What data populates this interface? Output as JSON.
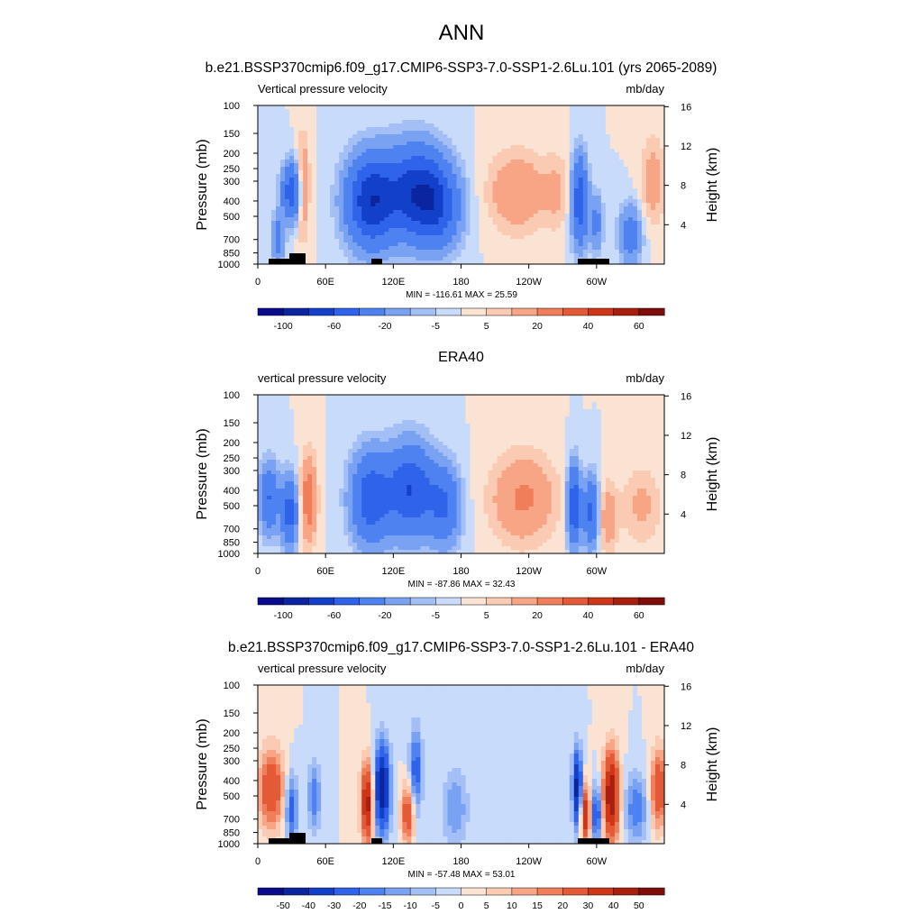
{
  "title": "ANN",
  "chart_data": [
    {
      "type": "heatmap",
      "title": "b.e21.BSSP370cmip6.f09_g17.CMIP6-SSP3-7.0-SSP1-2.6Lu.101 (yrs 2065-2089)",
      "left_label": "Vertical pressure velocity",
      "units": "mb/day",
      "ylabel": "Pressure (mb)",
      "ylabel_right": "Height (km)",
      "x_ticks": [
        "0",
        "60E",
        "120E",
        "180",
        "120W",
        "60W"
      ],
      "x_tick_values": [
        0,
        60,
        120,
        180,
        240,
        300
      ],
      "xlim": [
        0,
        360
      ],
      "y_ticks": [
        "100",
        "150",
        "200",
        "250",
        "300",
        "400",
        "500",
        "700",
        "850",
        "1000"
      ],
      "y_tick_values": [
        100,
        150,
        200,
        250,
        300,
        400,
        500,
        700,
        850,
        1000
      ],
      "ylim": [
        1000,
        100
      ],
      "y_scale": "log",
      "height_ticks": [
        "16",
        "12",
        "8",
        "4"
      ],
      "height_tick_values": [
        16,
        12,
        8,
        4
      ],
      "stats": "MIN = -116.61  MAX =  25.59",
      "colorbar_labels": [
        "-100",
        "-60",
        "-20",
        "-5",
        "5",
        "20",
        "40",
        "60"
      ],
      "colorbar_colors": [
        "#0a0a8c",
        "#0b249f",
        "#1240c8",
        "#2e63ea",
        "#4e82f0",
        "#7aa2f2",
        "#a3bff5",
        "#c9dbfa",
        "#fbe3d3",
        "#fbcab2",
        "#f7a585",
        "#f07e5a",
        "#e55a36",
        "#cf3517",
        "#a81f0e",
        "#7e0d0a"
      ],
      "features": [
        {
          "lon": 30,
          "p": 350,
          "v": -55,
          "sx": 6,
          "sy": 0.28
        },
        {
          "lon": 18,
          "p": 700,
          "v": -30,
          "sx": 4,
          "sy": 0.25
        },
        {
          "lon": 40,
          "p": 330,
          "v": 22,
          "sx": 4,
          "sy": 0.5
        },
        {
          "lon": 100,
          "p": 400,
          "v": -75,
          "sx": 15,
          "sy": 0.45
        },
        {
          "lon": 140,
          "p": 350,
          "v": -70,
          "sx": 18,
          "sy": 0.45
        },
        {
          "lon": 160,
          "p": 450,
          "v": -40,
          "sx": 14,
          "sy": 0.4
        },
        {
          "lon": 230,
          "p": 350,
          "v": 20,
          "sx": 18,
          "sy": 0.4
        },
        {
          "lon": 265,
          "p": 350,
          "v": 10,
          "sx": 8,
          "sy": 0.4
        },
        {
          "lon": 285,
          "p": 400,
          "v": -55,
          "sx": 5,
          "sy": 0.45
        },
        {
          "lon": 300,
          "p": 550,
          "v": -25,
          "sx": 4,
          "sy": 0.3
        },
        {
          "lon": 330,
          "p": 650,
          "v": -30,
          "sx": 7,
          "sy": 0.3
        },
        {
          "lon": 350,
          "p": 300,
          "v": 15,
          "sx": 8,
          "sy": 0.45
        }
      ]
    },
    {
      "type": "heatmap",
      "title": "ERA40",
      "left_label": "vertical pressure velocity",
      "units": "mb/day",
      "ylabel": "Pressure (mb)",
      "ylabel_right": "Height (km)",
      "x_ticks": [
        "0",
        "60E",
        "120E",
        "180",
        "120W",
        "60W"
      ],
      "x_tick_values": [
        0,
        60,
        120,
        180,
        240,
        300
      ],
      "xlim": [
        0,
        360
      ],
      "y_ticks": [
        "100",
        "150",
        "200",
        "250",
        "300",
        "400",
        "500",
        "700",
        "850",
        "1000"
      ],
      "y_tick_values": [
        100,
        150,
        200,
        250,
        300,
        400,
        500,
        700,
        850,
        1000
      ],
      "ylim": [
        1000,
        100
      ],
      "y_scale": "log",
      "height_ticks": [
        "16",
        "12",
        "8",
        "4"
      ],
      "height_tick_values": [
        16,
        12,
        8,
        4
      ],
      "stats": "MIN = -87.86  MAX =  32.43",
      "colorbar_labels": [
        "-100",
        "-60",
        "-20",
        "-5",
        "5",
        "20",
        "40",
        "60"
      ],
      "colorbar_colors": [
        "#0a0a8c",
        "#0b249f",
        "#1240c8",
        "#2e63ea",
        "#4e82f0",
        "#7aa2f2",
        "#a3bff5",
        "#c9dbfa",
        "#fbe3d3",
        "#fbcab2",
        "#f7a585",
        "#f07e5a",
        "#e55a36",
        "#cf3517",
        "#a81f0e",
        "#7e0d0a"
      ],
      "features": [
        {
          "lon": 10,
          "p": 450,
          "v": -40,
          "sx": 6,
          "sy": 0.35
        },
        {
          "lon": 28,
          "p": 550,
          "v": -50,
          "sx": 5,
          "sy": 0.35
        },
        {
          "lon": 45,
          "p": 450,
          "v": 28,
          "sx": 5,
          "sy": 0.45
        },
        {
          "lon": 100,
          "p": 450,
          "v": -55,
          "sx": 12,
          "sy": 0.45
        },
        {
          "lon": 135,
          "p": 400,
          "v": -60,
          "sx": 14,
          "sy": 0.45
        },
        {
          "lon": 165,
          "p": 500,
          "v": -40,
          "sx": 10,
          "sy": 0.4
        },
        {
          "lon": 235,
          "p": 450,
          "v": 22,
          "sx": 20,
          "sy": 0.45
        },
        {
          "lon": 280,
          "p": 500,
          "v": -60,
          "sx": 4,
          "sy": 0.4
        },
        {
          "lon": 295,
          "p": 550,
          "v": -45,
          "sx": 5,
          "sy": 0.35
        },
        {
          "lon": 310,
          "p": 600,
          "v": 18,
          "sx": 6,
          "sy": 0.35
        },
        {
          "lon": 340,
          "p": 500,
          "v": 12,
          "sx": 12,
          "sy": 0.4
        }
      ]
    },
    {
      "type": "heatmap",
      "title": "b.e21.BSSP370cmip6.f09_g17.CMIP6-SSP3-7.0-SSP1-2.6Lu.101 - ERA40",
      "left_label": "vertical pressure velocity",
      "units": "mb/day",
      "ylabel": "Pressure (mb)",
      "ylabel_right": "Height (km)",
      "x_ticks": [
        "0",
        "60E",
        "120E",
        "180",
        "120W",
        "60W"
      ],
      "x_tick_values": [
        0,
        60,
        120,
        180,
        240,
        300
      ],
      "xlim": [
        0,
        360
      ],
      "y_ticks": [
        "100",
        "150",
        "200",
        "250",
        "300",
        "400",
        "500",
        "700",
        "850",
        "1000"
      ],
      "y_tick_values": [
        100,
        150,
        200,
        250,
        300,
        400,
        500,
        700,
        850,
        1000
      ],
      "ylim": [
        1000,
        100
      ],
      "y_scale": "log",
      "height_ticks": [
        "16",
        "12",
        "8",
        "4"
      ],
      "height_tick_values": [
        16,
        12,
        8,
        4
      ],
      "stats": "MIN = -57.48  MAX =  53.01",
      "colorbar_labels": [
        "-50",
        "-40",
        "-30",
        "-20",
        "-15",
        "-10",
        "-5",
        "0",
        "5",
        "10",
        "15",
        "20",
        "30",
        "40",
        "50"
      ],
      "colorbar_colors": [
        "#0a0a8c",
        "#0b249f",
        "#1240c8",
        "#2e63ea",
        "#4e82f0",
        "#7aa2f2",
        "#a3bff5",
        "#c9dbfa",
        "#fbe3d3",
        "#fbcab2",
        "#f7a585",
        "#f07e5a",
        "#e55a36",
        "#cf3517",
        "#a81f0e",
        "#7e0d0a"
      ],
      "features": [
        {
          "lon": 12,
          "p": 450,
          "v": 30,
          "sx": 8,
          "sy": 0.4
        },
        {
          "lon": 30,
          "p": 600,
          "v": -25,
          "sx": 4,
          "sy": 0.35
        },
        {
          "lon": 50,
          "p": 500,
          "v": -20,
          "sx": 4,
          "sy": 0.35
        },
        {
          "lon": 97,
          "p": 550,
          "v": 45,
          "sx": 4,
          "sy": 0.4
        },
        {
          "lon": 110,
          "p": 450,
          "v": -50,
          "sx": 5,
          "sy": 0.45
        },
        {
          "lon": 133,
          "p": 650,
          "v": 30,
          "sx": 4,
          "sy": 0.3
        },
        {
          "lon": 140,
          "p": 350,
          "v": -25,
          "sx": 4,
          "sy": 0.45
        },
        {
          "lon": 175,
          "p": 600,
          "v": -15,
          "sx": 8,
          "sy": 0.4
        },
        {
          "lon": 283,
          "p": 450,
          "v": -45,
          "sx": 3,
          "sy": 0.4
        },
        {
          "lon": 290,
          "p": 650,
          "v": 40,
          "sx": 3,
          "sy": 0.3
        },
        {
          "lon": 300,
          "p": 650,
          "v": -30,
          "sx": 3,
          "sy": 0.3
        },
        {
          "lon": 313,
          "p": 500,
          "v": 50,
          "sx": 5,
          "sy": 0.45
        },
        {
          "lon": 335,
          "p": 600,
          "v": -20,
          "sx": 7,
          "sy": 0.35
        },
        {
          "lon": 355,
          "p": 450,
          "v": 30,
          "sx": 5,
          "sy": 0.4
        }
      ]
    }
  ]
}
